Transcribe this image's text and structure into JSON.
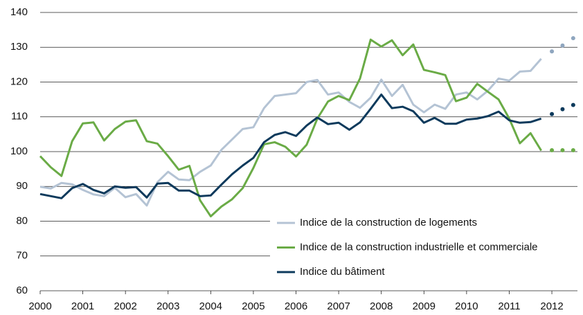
{
  "chart_data": {
    "type": "line",
    "x": [
      2000,
      2000.25,
      2000.5,
      2000.75,
      2001,
      2001.25,
      2001.5,
      2001.75,
      2002,
      2002.25,
      2002.5,
      2002.75,
      2003,
      2003.25,
      2003.5,
      2003.75,
      2004,
      2004.25,
      2004.5,
      2004.75,
      2005,
      2005.25,
      2005.5,
      2005.75,
      2006,
      2006.25,
      2006.5,
      2006.75,
      2007,
      2007.25,
      2007.5,
      2007.75,
      2008,
      2008.25,
      2008.5,
      2008.75,
      2009,
      2009.25,
      2009.5,
      2009.75,
      2010,
      2010.25,
      2010.5,
      2010.75,
      2011,
      2011.25,
      2011.5,
      2011.75
    ],
    "forecast_x": [
      2012,
      2012.25,
      2012.5
    ],
    "series": [
      {
        "name": "Indice de la construction de logements",
        "color": "#b4c3d4",
        "values": [
          89.9,
          89.4,
          91.0,
          90.6,
          89.0,
          87.7,
          87.2,
          89.6,
          86.9,
          87.8,
          84.5,
          91.2,
          94.2,
          92.0,
          91.8,
          94.2,
          96.0,
          100.5,
          103.5,
          106.5,
          107.0,
          112.5,
          116.0,
          116.4,
          116.8,
          120.0,
          120.6,
          116.4,
          117.0,
          114.3,
          112.6,
          115.5,
          120.7,
          116.0,
          119.2,
          113.5,
          111.3,
          113.5,
          112.3,
          116.4,
          117.0,
          115.0,
          117.5,
          121.0,
          120.4,
          123.0,
          123.2,
          126.7
        ],
        "forecast": [
          128.8,
          130.5,
          132.6
        ],
        "forecast_color": "#8fa6bf"
      },
      {
        "name": "Indice de la construction industrielle et commerciale",
        "color": "#6aab46",
        "values": [
          98.7,
          95.5,
          93.0,
          103.0,
          108.1,
          108.4,
          103.2,
          106.5,
          108.6,
          109.0,
          103.0,
          102.3,
          98.7,
          94.8,
          95.9,
          86.0,
          81.4,
          84.2,
          86.3,
          89.5,
          95.3,
          102.1,
          102.7,
          101.4,
          98.6,
          102.0,
          109.5,
          114.4,
          116.0,
          114.8,
          121.0,
          132.2,
          130.2,
          132.0,
          127.7,
          130.8,
          123.5,
          122.8,
          122.0,
          114.5,
          115.5,
          119.5,
          117.2,
          115.0,
          109.5,
          102.4,
          105.3,
          100.3
        ],
        "forecast": [
          100.4,
          100.4,
          100.4
        ],
        "forecast_color": "#6aab46"
      },
      {
        "name": "Indice du bâtiment",
        "color": "#0d3a5c",
        "values": [
          87.8,
          87.2,
          86.6,
          89.5,
          90.7,
          89.0,
          88.0,
          90.0,
          89.6,
          89.8,
          86.8,
          90.8,
          91.0,
          88.8,
          88.8,
          87.2,
          87.4,
          90.5,
          93.5,
          96.0,
          98.2,
          102.7,
          104.8,
          105.6,
          104.5,
          107.5,
          109.8,
          107.9,
          108.3,
          106.3,
          108.4,
          112.3,
          116.4,
          112.5,
          112.9,
          111.6,
          108.3,
          109.7,
          108.0,
          108.0,
          109.2,
          109.5,
          110.2,
          111.5,
          109.0,
          108.3,
          108.5,
          109.5
        ],
        "forecast": [
          110.8,
          112.2,
          113.4
        ],
        "forecast_color": "#0d3a5c"
      }
    ],
    "xlim": [
      2000,
      2012.6
    ],
    "xticks": [
      2000,
      2001,
      2002,
      2003,
      2004,
      2005,
      2006,
      2007,
      2008,
      2009,
      2010,
      2011,
      2012
    ],
    "ylim": [
      60,
      140
    ],
    "yticks": [
      60,
      70,
      80,
      90,
      100,
      110,
      120,
      130,
      140
    ],
    "grid": true,
    "legend": "lower right"
  }
}
